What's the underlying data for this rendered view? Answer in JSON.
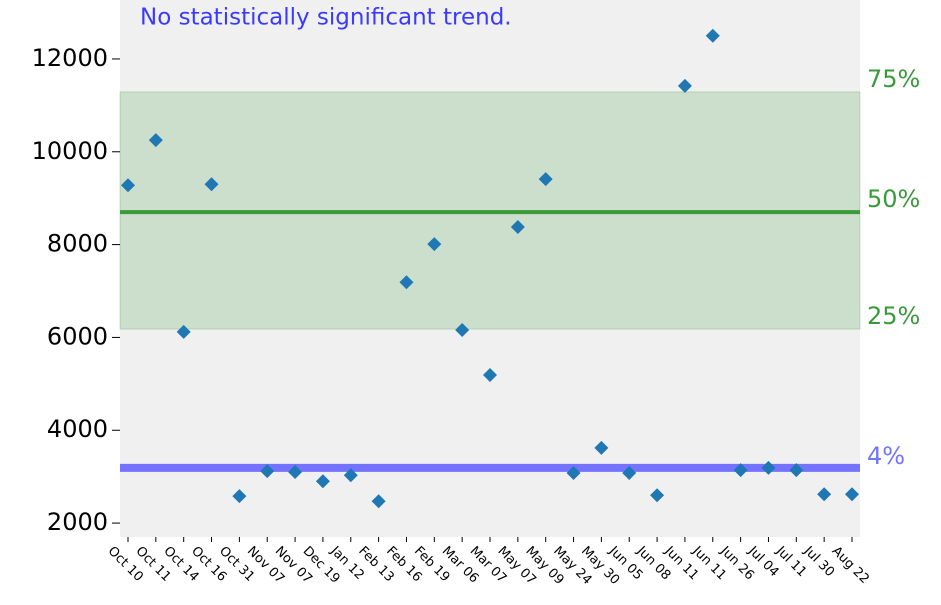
{
  "chart_data": {
    "type": "scatter",
    "annotation": "No statistically significant trend.",
    "categories": [
      "Oct 10",
      "Oct 11",
      "Oct 14",
      "Oct 16",
      "Oct 31",
      "Nov 07",
      "Nov 07",
      "Dec 19",
      "Jan 12",
      "Feb 13",
      "Feb 16",
      "Feb 19",
      "Mar 06",
      "Mar 07",
      "May 07",
      "May 09",
      "May 24",
      "May 30",
      "Jun 05",
      "Jun 08",
      "Jun 11",
      "Jun 11",
      "Jun 26",
      "Jul 04",
      "Jul 11",
      "Jul 30",
      "Aug 22"
    ],
    "values": [
      9280,
      10250,
      6120,
      9300,
      2580,
      3120,
      3100,
      2900,
      3030,
      2470,
      7190,
      8010,
      6160,
      5190,
      8380,
      9410,
      3080,
      3620,
      3080,
      2600,
      11420,
      12500,
      3140,
      3190,
      3140,
      2620,
      2620
    ],
    "color": "#1f77b4",
    "ylim": [
      1700,
      13270
    ],
    "yticks": [
      2000,
      4000,
      6000,
      8000,
      10000,
      12000
    ],
    "percentiles": [
      {
        "label": "25%",
        "value": 6180
      },
      {
        "label": "50%",
        "value": 8700
      },
      {
        "label": "75%",
        "value": 11290
      }
    ],
    "percentile_color": "#3a9a3a",
    "threshold": {
      "label": "4%",
      "value": 3190
    },
    "threshold_color": "#7373ff",
    "annotation_color": "#3b3bff"
  }
}
